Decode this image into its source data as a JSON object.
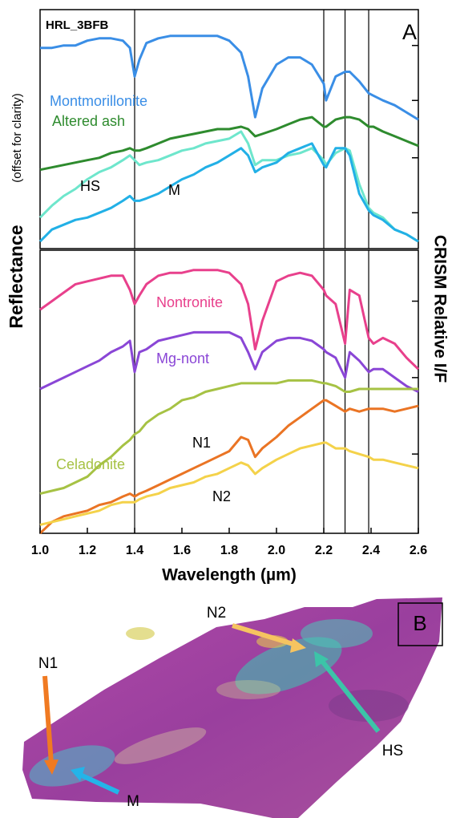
{
  "chart_data": [
    {
      "type": "line",
      "annotation": "HRL_3BFB",
      "panel_label": "A",
      "x": [
        1.0,
        1.05,
        1.1,
        1.15,
        1.2,
        1.25,
        1.3,
        1.35,
        1.38,
        1.4,
        1.42,
        1.45,
        1.5,
        1.55,
        1.6,
        1.65,
        1.7,
        1.75,
        1.8,
        1.85,
        1.88,
        1.91,
        1.94,
        2.0,
        2.05,
        2.1,
        2.15,
        2.2,
        2.21,
        2.25,
        2.29,
        2.31,
        2.35,
        2.39,
        2.41,
        2.45,
        2.5,
        2.55,
        2.6
      ],
      "xlim": [
        1.0,
        2.6
      ],
      "ylim": [
        0,
        100
      ],
      "yticks": [
        15,
        38,
        62,
        85
      ],
      "vlines": [
        1.4,
        2.2,
        2.29,
        2.39
      ],
      "series": [
        {
          "name": "Montmorillonite",
          "color": "#3a8ee6",
          "values": [
            84,
            84,
            85,
            85,
            87,
            88,
            88,
            87,
            84,
            72,
            79,
            86,
            88,
            89,
            89,
            89,
            89,
            89,
            87,
            82,
            72,
            55,
            67,
            77,
            80,
            80,
            77,
            69,
            62,
            72,
            74,
            74,
            70,
            65,
            64,
            62,
            60,
            57,
            54
          ]
        },
        {
          "name": "Altered ash",
          "color": "#2e8b2e",
          "values": [
            33,
            34,
            35,
            36,
            37,
            38,
            40,
            41,
            42,
            41,
            41,
            42,
            44,
            46,
            47,
            48,
            49,
            50,
            50,
            51,
            50,
            47,
            48,
            50,
            52,
            54,
            55,
            51,
            51,
            54,
            55,
            55,
            54,
            51,
            51,
            49,
            47,
            45,
            43
          ]
        },
        {
          "name": "HS",
          "color": "#6ee6cc",
          "values": [
            13,
            18,
            22,
            25,
            29,
            32,
            34,
            37,
            39,
            37,
            35,
            36,
            37,
            39,
            41,
            42,
            44,
            45,
            46,
            49,
            44,
            35,
            37,
            37,
            39,
            40,
            42,
            37,
            35,
            40,
            42,
            41,
            27,
            17,
            15,
            13,
            8,
            6,
            3
          ]
        },
        {
          "name": "M",
          "color": "#22b0e6",
          "values": [
            3,
            8,
            10,
            12,
            13,
            15,
            17,
            20,
            22,
            20,
            20,
            21,
            23,
            26,
            29,
            31,
            34,
            36,
            39,
            42,
            39,
            32,
            34,
            36,
            40,
            42,
            44,
            35,
            34,
            42,
            42,
            39,
            23,
            16,
            14,
            12,
            8,
            6,
            3
          ]
        }
      ]
    },
    {
      "type": "line",
      "x": [
        1.0,
        1.05,
        1.1,
        1.15,
        1.2,
        1.25,
        1.3,
        1.35,
        1.38,
        1.4,
        1.42,
        1.45,
        1.5,
        1.55,
        1.6,
        1.65,
        1.7,
        1.75,
        1.8,
        1.85,
        1.88,
        1.91,
        1.94,
        2.0,
        2.05,
        2.1,
        2.15,
        2.2,
        2.21,
        2.25,
        2.29,
        2.31,
        2.35,
        2.39,
        2.41,
        2.45,
        2.5,
        2.55,
        2.6
      ],
      "xlim": [
        1.0,
        2.6
      ],
      "xticks": [
        {
          "value": 1.0,
          "label": "1.0"
        },
        1.2,
        1.4,
        1.6,
        1.8,
        {
          "value": 2.0,
          "label": "2.0"
        },
        2.2,
        2.4,
        2.6
      ],
      "xlabel": "Wavelength (µm)",
      "ylabel": "Reflectance",
      "ylabel_note": "(offset for clarity)",
      "y2label": "CRISM Relative I/F",
      "ylim": [
        0,
        100
      ],
      "yticks": [
        28,
        55,
        82
      ],
      "vlines": [
        1.4,
        2.2,
        2.29,
        2.39
      ],
      "series": [
        {
          "name": "Nontronite",
          "color": "#e8408c",
          "values": [
            79,
            82,
            85,
            88,
            89,
            90,
            91,
            91,
            86,
            81,
            84,
            88,
            91,
            92,
            92,
            93,
            93,
            93,
            92,
            88,
            81,
            65,
            75,
            89,
            91,
            92,
            91,
            86,
            84,
            81,
            67,
            86,
            84,
            69,
            67,
            69,
            67,
            62,
            58
          ]
        },
        {
          "name": "Mg-nont",
          "color": "#8a46d6",
          "values": [
            51,
            53,
            55,
            57,
            59,
            61,
            64,
            66,
            68,
            57,
            64,
            65,
            68,
            69,
            70,
            71,
            71,
            71,
            71,
            69,
            64,
            58,
            64,
            68,
            69,
            69,
            68,
            65,
            64,
            62,
            55,
            64,
            61,
            57,
            58,
            58,
            55,
            52,
            50
          ]
        },
        {
          "name": "Celadonite",
          "color": "#a6c244",
          "values": [
            14,
            15,
            16,
            18,
            20,
            24,
            27,
            31,
            33,
            35,
            36,
            39,
            42,
            44,
            47,
            48,
            50,
            51,
            52,
            53,
            53,
            53,
            53,
            53,
            54,
            54,
            54,
            53,
            53,
            52,
            50,
            50,
            51,
            51,
            51,
            51,
            51,
            51,
            51
          ]
        },
        {
          "name": "N1",
          "color": "#ea7424",
          "values": [
            0,
            4,
            6,
            7,
            8,
            10,
            11,
            13,
            14,
            13,
            14,
            15,
            17,
            19,
            21,
            23,
            25,
            27,
            29,
            34,
            33,
            27,
            30,
            34,
            38,
            41,
            44,
            47,
            47,
            45,
            43,
            44,
            43,
            44,
            44,
            44,
            43,
            44,
            45
          ]
        },
        {
          "name": "N2",
          "color": "#f4d24a",
          "values": [
            3,
            4,
            5,
            6,
            7,
            8,
            10,
            11,
            11,
            11,
            12,
            13,
            14,
            16,
            17,
            18,
            20,
            21,
            23,
            25,
            24,
            21,
            23,
            26,
            28,
            30,
            31,
            32,
            32,
            30,
            30,
            29,
            28,
            27,
            26,
            26,
            25,
            24,
            23
          ]
        }
      ]
    }
  ],
  "map": {
    "panel_label": "B",
    "labels": [
      "N2",
      "N1",
      "HS",
      "M"
    ]
  }
}
